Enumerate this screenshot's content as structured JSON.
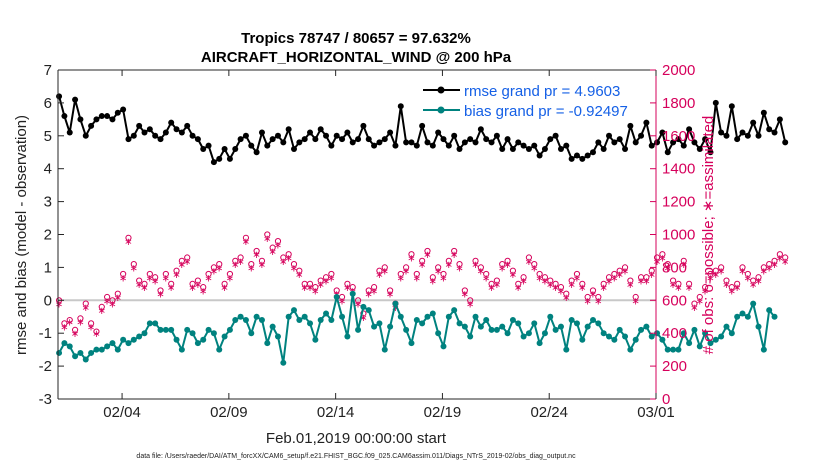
{
  "chart_data": {
    "type": "line",
    "title_line1": "Tropics 78747 / 80657 = 97.632%",
    "title_line2": "AIRCRAFT_HORIZONTAL_WIND @ 200 hPa",
    "xlabel": "Feb.01,2019 00:00:00 start",
    "ylabel_left": "rmse and bias (model - observation)",
    "ylabel_right": "# of obs: o=possible; ∗=assimilated",
    "footer": "data file: /Users/raeder/DAI/ATM_forcXX/CAM6_setup/f.e21.FHIST_BGC.f09_025.CAM6assim.011/Diags_NTrS_2019-02/obs_diag_output.nc",
    "xlim": [
      0,
      28
    ],
    "ylim_left": [
      -3,
      7
    ],
    "ylim_right": [
      0,
      2000
    ],
    "x_tick_positions": [
      3,
      8,
      13,
      18,
      23,
      28
    ],
    "x_tick_labels": [
      "02/04",
      "02/09",
      "02/14",
      "02/19",
      "02/24",
      "03/01"
    ],
    "y_left_ticks": [
      "-3",
      "-2",
      "-1",
      "0",
      "1",
      "2",
      "3",
      "4",
      "5",
      "6",
      "7"
    ],
    "y_right_ticks": [
      "0",
      "200",
      "400",
      "600",
      "800",
      "1000",
      "1200",
      "1400",
      "1600",
      "1800",
      "2000"
    ],
    "step_days": 0.25,
    "colors": {
      "rmse": "#000000",
      "bias": "#00827f",
      "obs": "#d6005b",
      "legend_text": "#1560e6",
      "zero_line": "#c8c8c8"
    },
    "series": [
      {
        "name": "rmse grand pr = 4.9603",
        "values": [
          6.2,
          5.6,
          5.1,
          6.1,
          5.5,
          5.0,
          5.3,
          5.5,
          5.6,
          5.6,
          5.5,
          5.7,
          5.8,
          4.9,
          5.0,
          5.3,
          5.1,
          5.2,
          5.0,
          4.9,
          5.1,
          5.4,
          5.2,
          5.1,
          5.3,
          5.0,
          4.9,
          4.6,
          4.7,
          4.2,
          4.3,
          4.6,
          4.3,
          4.6,
          4.9,
          5.0,
          4.7,
          4.5,
          5.1,
          4.7,
          4.9,
          5.0,
          4.8,
          5.2,
          4.6,
          4.8,
          4.9,
          5.1,
          4.9,
          5.2,
          5.0,
          4.7,
          5.0,
          4.9,
          5.1,
          4.8,
          4.9,
          5.3,
          4.9,
          4.7,
          4.8,
          4.9,
          5.1,
          4.7,
          5.9,
          4.8,
          4.8,
          4.7,
          5.3,
          4.8,
          4.7,
          5.1,
          4.9,
          4.7,
          5.0,
          4.6,
          4.8,
          4.9,
          4.8,
          5.2,
          4.9,
          4.8,
          5.0,
          4.6,
          4.9,
          4.6,
          4.8,
          4.7,
          4.6,
          4.7,
          4.4,
          4.6,
          4.9,
          5.0,
          4.6,
          4.7,
          4.3,
          4.4,
          4.3,
          4.4,
          4.5,
          4.8,
          4.6,
          5.0,
          4.8,
          4.9,
          4.6,
          5.3,
          4.8,
          5.0,
          5.4,
          4.7,
          4.8,
          5.1,
          4.5,
          4.8,
          4.9,
          4.7,
          5.2,
          4.8,
          4.6,
          4.9,
          4.5,
          6.0,
          5.1,
          5.0,
          5.9,
          4.9,
          5.1,
          5.0,
          5.4,
          5.0,
          5.7,
          5.2,
          5.1,
          5.5,
          4.8
        ],
        "color": "#000000"
      },
      {
        "name": "bias grand pr = -0.92497",
        "values": [
          -1.6,
          -1.3,
          -1.4,
          -1.7,
          -1.6,
          -1.8,
          -1.6,
          -1.5,
          -1.5,
          -1.4,
          -1.3,
          -1.5,
          -1.2,
          -1.3,
          -1.2,
          -1.1,
          -1.0,
          -0.7,
          -0.7,
          -0.9,
          -0.9,
          -0.9,
          -1.2,
          -1.5,
          -0.9,
          -1.0,
          -1.3,
          -1.2,
          -0.9,
          -1.0,
          -1.5,
          -1.1,
          -0.9,
          -0.6,
          -0.5,
          -0.6,
          -1.0,
          -0.5,
          -0.6,
          -1.3,
          -0.8,
          -1.1,
          -1.9,
          -0.5,
          -0.3,
          -0.6,
          -0.5,
          -0.7,
          -1.2,
          -0.6,
          -0.4,
          -0.6,
          0.1,
          -0.5,
          -1.1,
          0.2,
          -0.9,
          -0.2,
          -0.3,
          -0.8,
          -0.7,
          -1.5,
          -0.8,
          -0.1,
          -0.5,
          -0.9,
          -1.3,
          -0.6,
          -0.7,
          -0.5,
          -0.4,
          -1.0,
          -1.4,
          -0.5,
          -0.3,
          -0.7,
          -0.8,
          -1.1,
          -0.5,
          -0.8,
          -0.6,
          -0.9,
          -0.9,
          -0.8,
          -1.0,
          -0.6,
          -0.7,
          -1.1,
          -1.0,
          -0.7,
          -1.3,
          -1.0,
          -0.5,
          -0.9,
          -0.8,
          -1.5,
          -0.6,
          -0.7,
          -1.2,
          -0.8,
          -0.6,
          -0.7,
          -1.0,
          -1.1,
          -1.2,
          -0.9,
          -1.1,
          -1.5,
          -1.2,
          -0.9,
          -0.8,
          -1.1,
          -1.0,
          -1.2,
          -1.5,
          -1.5,
          -1.5,
          -1.0,
          -1.3,
          -0.9,
          -1.4,
          -1.0,
          -1.3,
          -1.2,
          -1.1,
          -0.8,
          -1.0,
          -0.5,
          -0.4,
          -0.5,
          -0.1,
          -0.8,
          -1.5,
          -0.3,
          -0.5
        ],
        "color": "#00827f"
      },
      {
        "name": "obs possible (o)",
        "values": [
          600,
          460,
          480,
          420,
          490,
          580,
          460,
          410,
          560,
          620,
          600,
          640,
          760,
          980,
          820,
          720,
          700,
          760,
          740,
          660,
          760,
          700,
          780,
          840,
          860,
          700,
          720,
          680,
          760,
          800,
          820,
          700,
          760,
          840,
          860,
          980,
          820,
          900,
          840,
          1000,
          920,
          960,
          860,
          880,
          820,
          780,
          700,
          700,
          680,
          720,
          740,
          760,
          660,
          620,
          700,
          680,
          600,
          520,
          660,
          680,
          780,
          800,
          660,
          580,
          760,
          800,
          880,
          760,
          840,
          900,
          740,
          800,
          760,
          840,
          900,
          820,
          660,
          600,
          840,
          800,
          760,
          700,
          720,
          820,
          840,
          780,
          700,
          740,
          860,
          820,
          760,
          740,
          720,
          700,
          680,
          640,
          720,
          760,
          700,
          620,
          660,
          620,
          700,
          740,
          760,
          780,
          800,
          720,
          620,
          740,
          740,
          780,
          860,
          880,
          820,
          720,
          700,
          840,
          700,
          580,
          620,
          680,
          760,
          780,
          800,
          720,
          680,
          700,
          800,
          760,
          720,
          740,
          800,
          820,
          840,
          880,
          860
        ],
        "color": "#d6005b"
      },
      {
        "name": "obs assimilated (*)",
        "values": [
          580,
          440,
          470,
          400,
          470,
          560,
          440,
          400,
          540,
          600,
          580,
          620,
          740,
          960,
          800,
          700,
          680,
          740,
          720,
          640,
          740,
          680,
          760,
          820,
          840,
          680,
          700,
          660,
          740,
          780,
          800,
          680,
          740,
          820,
          840,
          960,
          800,
          880,
          820,
          980,
          900,
          940,
          840,
          860,
          800,
          760,
          680,
          680,
          660,
          700,
          720,
          740,
          640,
          600,
          680,
          660,
          580,
          500,
          640,
          660,
          760,
          780,
          640,
          560,
          740,
          780,
          860,
          740,
          820,
          880,
          720,
          780,
          740,
          820,
          880,
          800,
          640,
          580,
          820,
          780,
          740,
          680,
          700,
          800,
          820,
          760,
          680,
          720,
          840,
          800,
          740,
          720,
          700,
          680,
          660,
          620,
          700,
          740,
          680,
          600,
          640,
          600,
          680,
          720,
          740,
          760,
          780,
          700,
          600,
          720,
          720,
          760,
          840,
          860,
          800,
          700,
          680,
          820,
          680,
          560,
          600,
          660,
          740,
          760,
          780,
          700,
          660,
          680,
          780,
          740,
          700,
          720,
          780,
          800,
          820,
          860,
          840
        ],
        "color": "#d6005b"
      }
    ]
  }
}
